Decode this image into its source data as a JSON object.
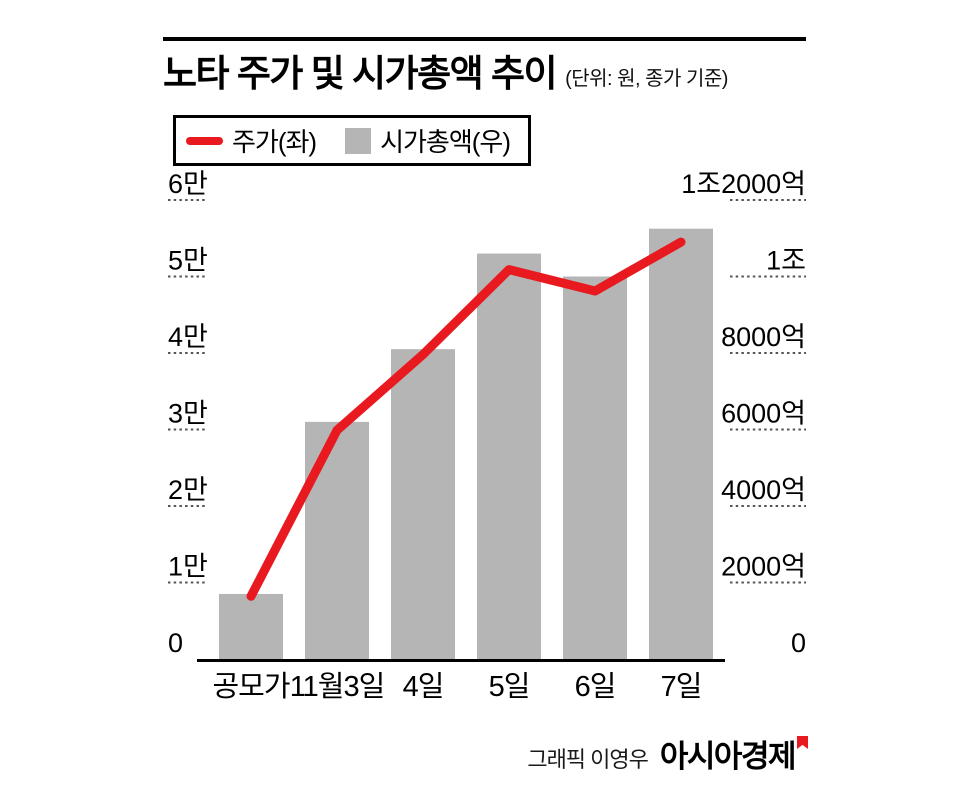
{
  "header": {
    "title": "노타 주가 및 시가총액 추이",
    "unit_note": "(단위: 원, 종가 기준)"
  },
  "legend": {
    "price_label": "주가(좌)",
    "marketcap_label": "시가총액(우)"
  },
  "colors": {
    "price_line": "#e8191f",
    "marketcap_bar": "#b5b5b5",
    "axis_line": "#000000",
    "tick_dots": "#555555",
    "text": "#000000"
  },
  "chart_data": {
    "type": "combo-bar-line",
    "title": "노타 주가 및 시가총액 추이",
    "unit_note": "단위: 원, 종가 기준",
    "categories": [
      "공모가",
      "11월3일",
      "4일",
      "5일",
      "6일",
      "7일"
    ],
    "series": [
      {
        "name": "주가(좌)",
        "type": "line",
        "axis": "left",
        "unit": "원",
        "values": [
          8200,
          29900,
          39800,
          50900,
          48100,
          54500
        ]
      },
      {
        "name": "시가총액(우)",
        "type": "bar",
        "axis": "right",
        "unit": "억원",
        "values": [
          1700,
          6200,
          8100,
          10600,
          10000,
          11250
        ]
      }
    ],
    "left_axis": {
      "tick_labels": [
        "0",
        "1만",
        "2만",
        "3만",
        "4만",
        "5만",
        "6만"
      ],
      "tick_values": [
        0,
        10000,
        20000,
        30000,
        40000,
        50000,
        60000
      ],
      "min": 0,
      "max": 60000
    },
    "right_axis": {
      "tick_labels": [
        "0",
        "2000억",
        "4000억",
        "6000억",
        "8000억",
        "1조",
        "1조2000억"
      ],
      "tick_values": [
        0,
        2000,
        4000,
        6000,
        8000,
        10000,
        12000
      ],
      "min": 0,
      "max": 12000
    },
    "legend_position": "top-left",
    "grid": "short dotted tick marks beside axis labels"
  },
  "footer": {
    "credit": "그래픽 이영우",
    "brand": "아시아경제"
  }
}
